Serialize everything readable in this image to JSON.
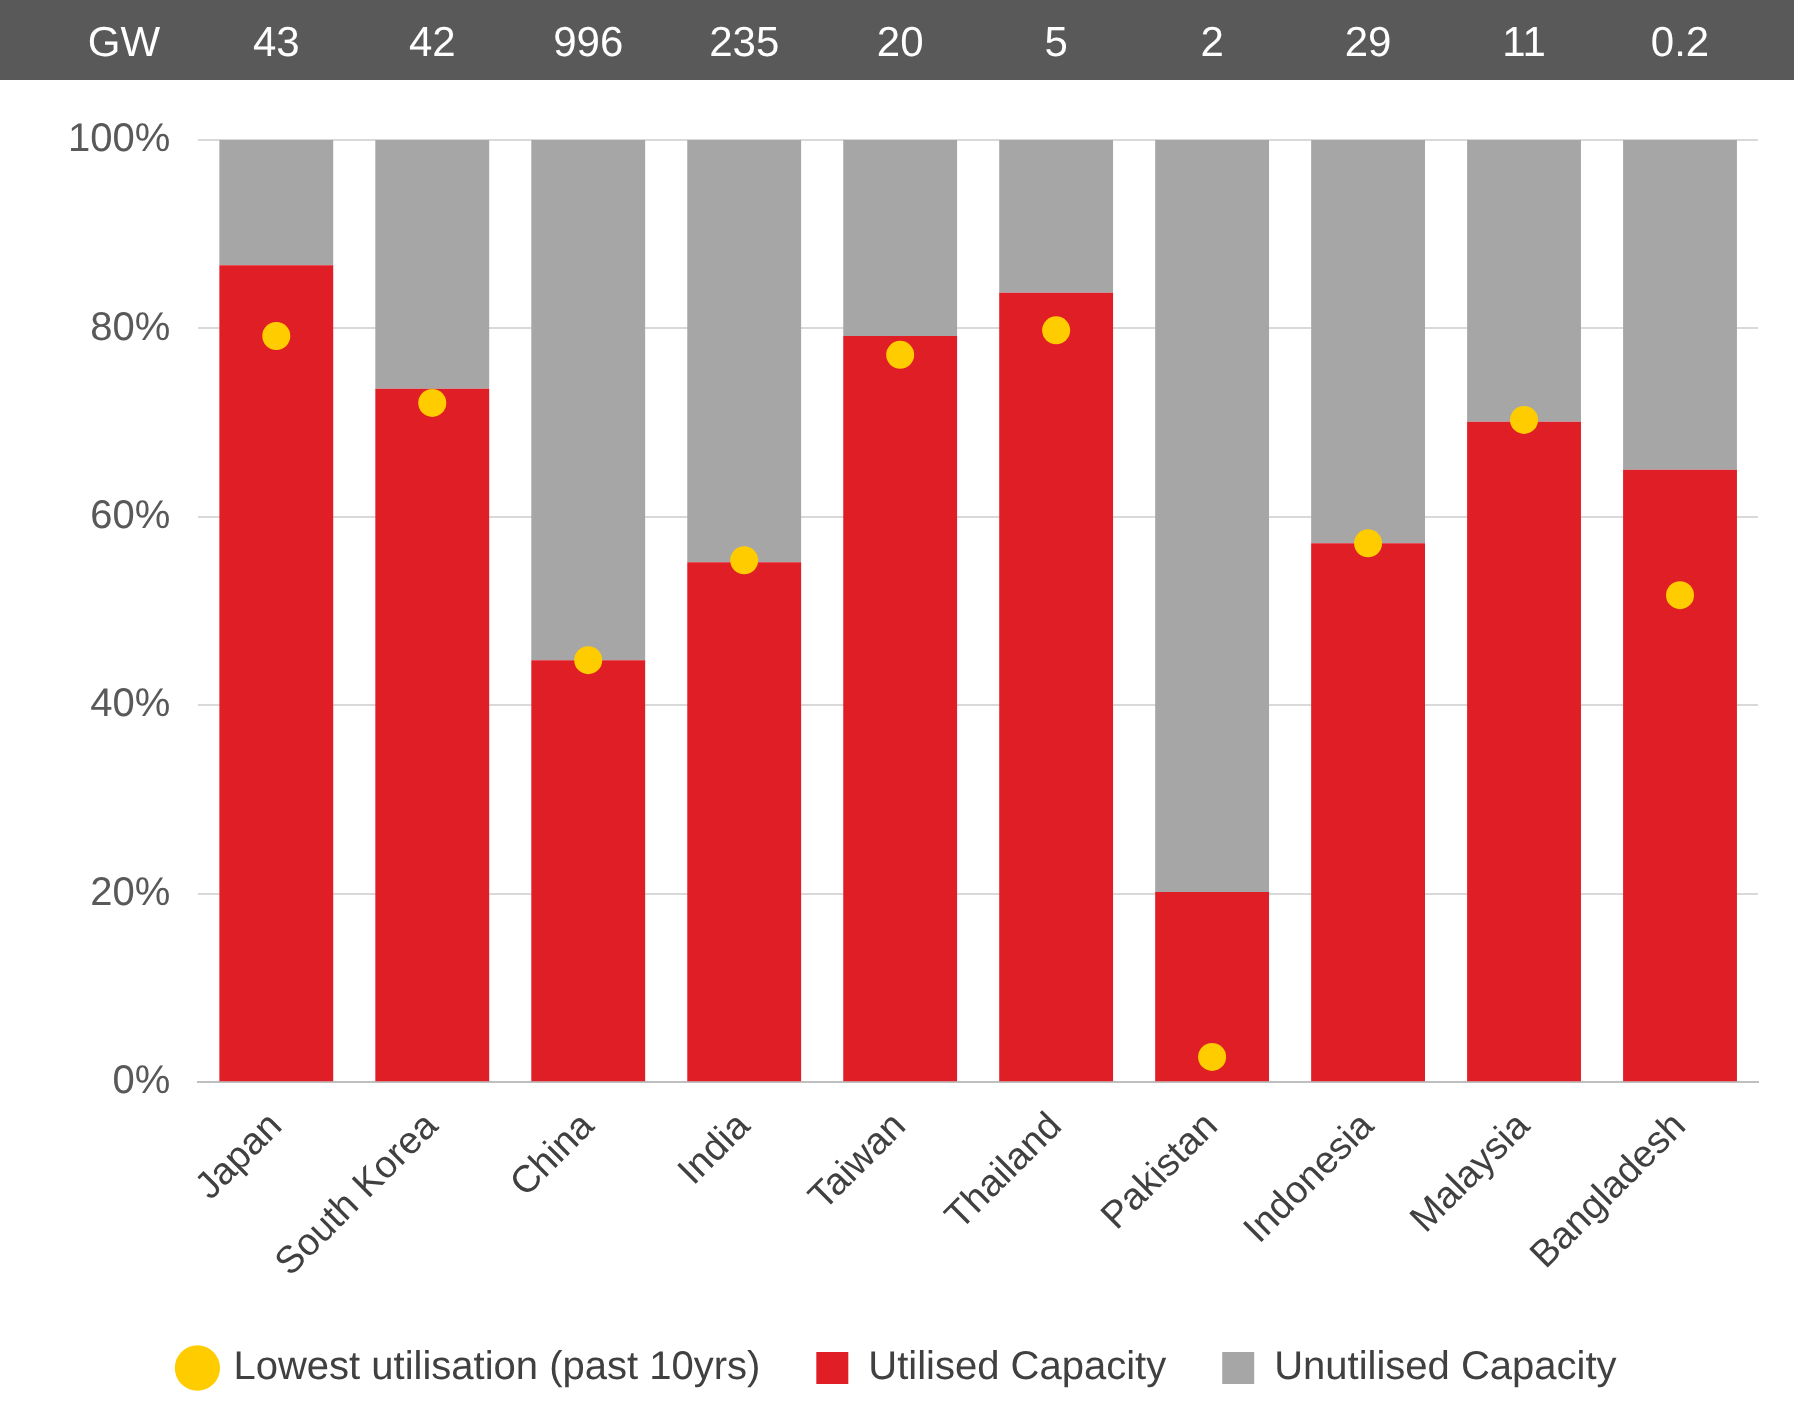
{
  "chart_data": {
    "type": "bar",
    "stacked": true,
    "categories": [
      "Japan",
      "South Korea",
      "China",
      "India",
      "Taiwan",
      "Thailand",
      "Pakistan",
      "Indonesia",
      "Malaysia",
      "Bangladesh"
    ],
    "series": [
      {
        "name": "Utilised Capacity",
        "color": "#e01e25",
        "values": [
          86.7,
          73.6,
          44.8,
          55.2,
          79.2,
          83.8,
          20.2,
          57.2,
          70.1,
          65.0
        ]
      },
      {
        "name": "Unutilised Capacity",
        "color": "#a6a6a6",
        "values": [
          13.3,
          26.4,
          55.2,
          44.8,
          20.8,
          16.2,
          79.8,
          42.8,
          29.9,
          35.0
        ]
      },
      {
        "name": "Lowest utilisation (past 10yrs)",
        "type": "scatter",
        "color": "#ffcc00",
        "marker": "circle",
        "values": [
          79.2,
          72.1,
          44.8,
          55.4,
          77.2,
          79.8,
          2.7,
          57.2,
          70.3,
          51.7
        ]
      }
    ],
    "ylim": [
      0,
      100
    ],
    "yticks": [
      {
        "value": 0,
        "label": "0%"
      },
      {
        "value": 20,
        "label": "20%"
      },
      {
        "value": 40,
        "label": "40%"
      },
      {
        "value": 60,
        "label": "60%"
      },
      {
        "value": 80,
        "label": "80%"
      },
      {
        "value": 100,
        "label": "100%"
      }
    ],
    "grid": "y",
    "legend": "bottom",
    "annotations": [
      "GW",
      "43",
      "42",
      "996",
      "235",
      "20",
      "5",
      "2",
      "29",
      "11",
      "0.2"
    ]
  }
}
